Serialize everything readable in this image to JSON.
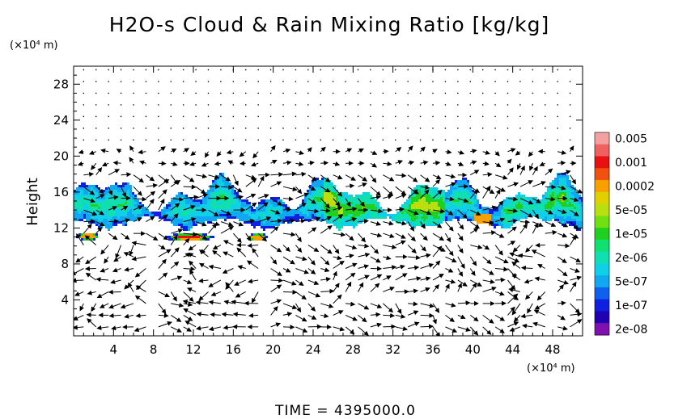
{
  "chart_data": {
    "type": "heatmap",
    "title": "H2O-s Cloud & Rain Mixing Ratio [kg/kg]",
    "ylabel": "Height",
    "y_unit": "(×10⁴ m)",
    "x_unit": "(×10⁴ m)",
    "xlim": [
      0,
      51
    ],
    "ylim": [
      0,
      30
    ],
    "x_ticks": [
      4,
      8,
      12,
      16,
      20,
      24,
      28,
      32,
      36,
      40,
      44,
      48
    ],
    "y_ticks": [
      4,
      8,
      12,
      16,
      20,
      24,
      28
    ],
    "x_tick_labels": [
      "4",
      "8",
      "12",
      "16",
      "20",
      "24",
      "28",
      "32",
      "36",
      "40",
      "44",
      "48"
    ],
    "y_tick_labels": [
      "4",
      "8",
      "12",
      "16",
      "20",
      "24",
      "28"
    ],
    "footer": "TIME = 4395000.0",
    "grid": false,
    "legend": {
      "placement": "right",
      "levels": [
        {
          "label": "0.005",
          "color": "#f4a0a0"
        },
        {
          "label": "",
          "color": "#f06060"
        },
        {
          "label": "0.001",
          "color": "#e81010"
        },
        {
          "label": "",
          "color": "#f05010"
        },
        {
          "label": "0.0002",
          "color": "#f8a000"
        },
        {
          "label": "",
          "color": "#e0d000"
        },
        {
          "label": "5e-05",
          "color": "#b8e010"
        },
        {
          "label": "",
          "color": "#70e010"
        },
        {
          "label": "1e-05",
          "color": "#20d020"
        },
        {
          "label": "",
          "color": "#10e070"
        },
        {
          "label": "2e-06",
          "color": "#10e0b0"
        },
        {
          "label": "",
          "color": "#10d0e8"
        },
        {
          "label": "5e-07",
          "color": "#10a8f0"
        },
        {
          "label": "",
          "color": "#1060f0"
        },
        {
          "label": "1e-07",
          "color": "#1020e0"
        },
        {
          "label": "",
          "color": "#2000b0"
        },
        {
          "label": "2e-08",
          "color": "#8010b0"
        }
      ]
    },
    "cloud_features": [
      {
        "level": "2e-06",
        "x_range": [
          0,
          51
        ],
        "y_range": [
          12,
          17.5
        ],
        "note": "upper cloud layer"
      },
      {
        "level": "0.0002",
        "x_range": [
          40,
          42
        ],
        "y_range": [
          11.5,
          13.5
        ]
      },
      {
        "level": "5e-05",
        "x_range": [
          26,
          36
        ],
        "y_range": [
          12,
          16
        ]
      }
    ]
  }
}
